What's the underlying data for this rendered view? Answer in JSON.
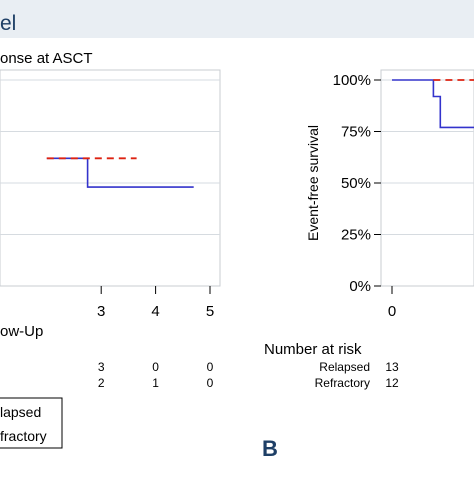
{
  "panel_a_title": "el",
  "panel_b_letter": "B",
  "chart_data": [
    {
      "type": "line",
      "title": "onse at ASCT",
      "xlabel": "ow-Up",
      "ylabel": "",
      "xlim": [
        2,
        5
      ],
      "ylim": [
        0,
        1
      ],
      "x_ticks": [
        "3",
        "4",
        "5"
      ],
      "y_ticks": [],
      "grid": true,
      "series": [
        {
          "name": "lapsed",
          "color": "#3333cc",
          "style": "solid",
          "points": [
            [
              2.0,
              0.62
            ],
            [
              2.75,
              0.62
            ],
            [
              2.75,
              0.48
            ],
            [
              4.7,
              0.48
            ]
          ]
        },
        {
          "name": "fractory",
          "color": "#dd2211",
          "style": "dashed",
          "points": [
            [
              2.0,
              0.62
            ],
            [
              3.65,
              0.62
            ]
          ]
        }
      ],
      "risk_table": {
        "header": "",
        "rows": [
          {
            "label": "",
            "values": [
              "3",
              "0",
              "0"
            ]
          },
          {
            "label": "",
            "values": [
              "2",
              "1",
              "0"
            ]
          }
        ]
      },
      "legend_placement": "bottom-left"
    },
    {
      "type": "line",
      "title": "",
      "xlabel": "",
      "ylabel": "Event-free survival",
      "xlim": [
        0,
        1
      ],
      "ylim": [
        0,
        1
      ],
      "x_ticks": [
        "0"
      ],
      "y_ticks": [
        "0%",
        "25%",
        "50%",
        "75%",
        "100%"
      ],
      "grid": true,
      "series": [
        {
          "name": "",
          "color": "#3333cc",
          "style": "solid",
          "points": [
            [
              0,
              1.0
            ],
            [
              0.3,
              1.0
            ],
            [
              0.3,
              0.92
            ],
            [
              0.35,
              0.92
            ],
            [
              0.35,
              0.77
            ],
            [
              1.0,
              0.77
            ]
          ]
        },
        {
          "name": "",
          "color": "#dd2211",
          "style": "dashed",
          "points": [
            [
              0.3,
              1.0
            ],
            [
              1.0,
              1.0
            ]
          ]
        }
      ],
      "risk_table": {
        "header": "Number at risk",
        "rows": [
          {
            "label": "Relapsed",
            "values": [
              "13"
            ]
          },
          {
            "label": "Refractory",
            "values": [
              "12"
            ]
          }
        ]
      }
    }
  ]
}
